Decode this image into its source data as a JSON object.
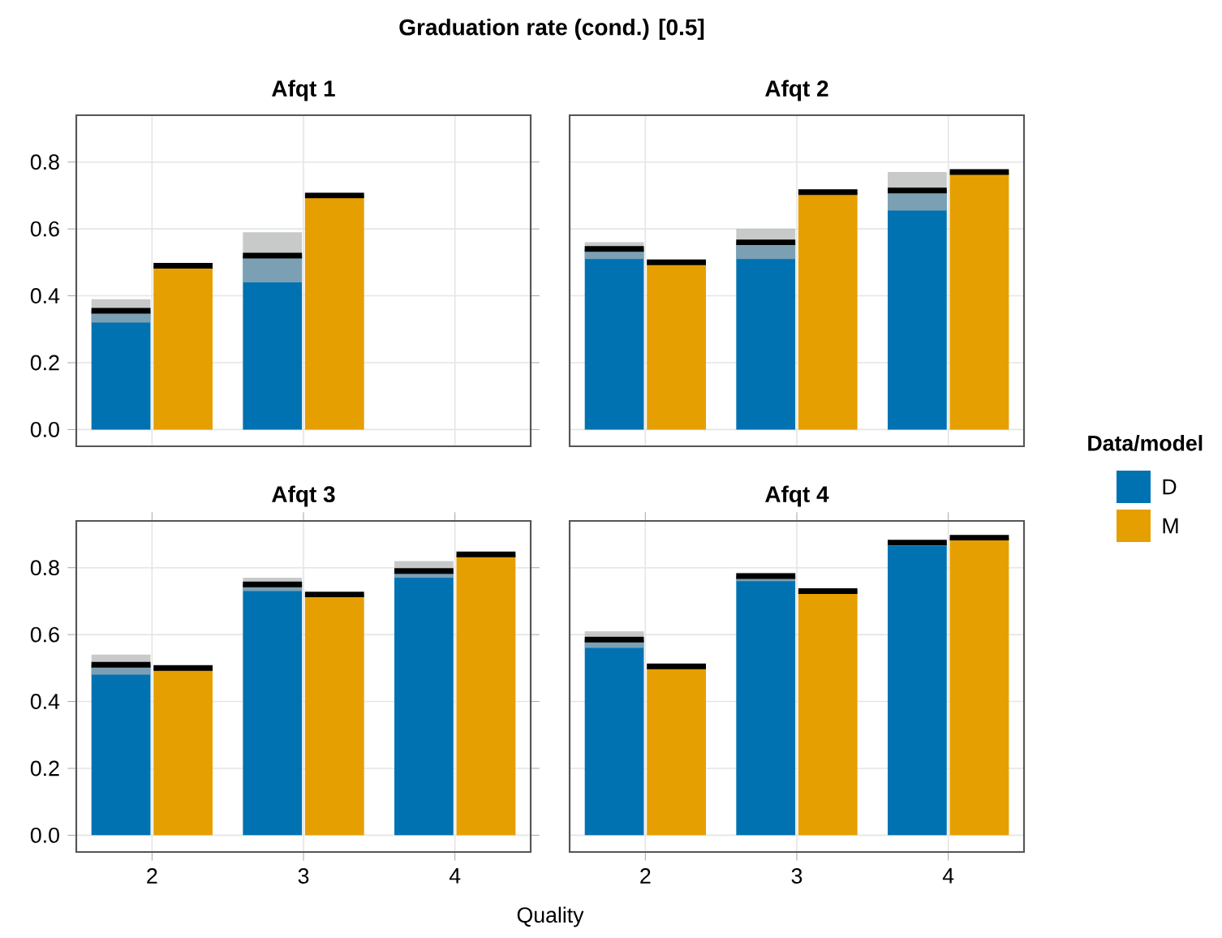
{
  "chart_data": [
    {
      "type": "bar",
      "title": "Afqt 1",
      "annotations": [
        "Graduation rate (cond.) [0.5]"
      ],
      "categories": [
        "2",
        "3",
        "4"
      ],
      "ylim": [
        -0.05,
        0.94
      ],
      "yticks": [
        {
          "value": 0,
          "label": "0.0"
        },
        0.2,
        0.4,
        0.6,
        0.8
      ],
      "grid": true,
      "tick_labels": "y",
      "series": [
        {
          "color": "#0072b2",
          "values": [
            0.355,
            0.52,
            null
          ],
          "errors": [
            [
              0.32,
              0.39
            ],
            [
              0.44,
              0.59
            ],
            null
          ]
        },
        {
          "color": "#e69f00",
          "values": [
            0.49,
            0.7,
            null
          ]
        }
      ]
    },
    {
      "type": "bar",
      "title": "Afqt 2",
      "categories": [
        "2",
        "3",
        "4"
      ],
      "ylim": [
        -0.05,
        0.94
      ],
      "yticks": [
        {
          "value": 0,
          "label": null
        },
        {
          "value": 0.2,
          "label": null
        },
        {
          "value": 0.4,
          "label": null
        },
        {
          "value": 0.6,
          "label": null
        },
        {
          "value": 0.8,
          "label": null
        }
      ],
      "grid": true,
      "tick_labels": false,
      "legend": "right",
      "legend_title": "Data/model",
      "series": [
        {
          "name": "D",
          "color": "#0072b2",
          "values": [
            0.54,
            0.56,
            0.715
          ],
          "errors": [
            [
              0.51,
              0.56
            ],
            [
              0.51,
              0.6
            ],
            [
              0.655,
              0.77
            ]
          ]
        },
        {
          "name": "M",
          "color": "#e69f00",
          "values": [
            0.5,
            0.71,
            0.77
          ]
        }
      ]
    },
    {
      "type": "bar",
      "title": "Afqt 3",
      "xlabel": "Quality",
      "categories": [
        "2",
        "3",
        "4"
      ],
      "ylim": [
        -0.05,
        0.94
      ],
      "yticks": [
        {
          "value": 0,
          "label": "0.0"
        },
        0.2,
        0.4,
        0.6,
        0.8
      ],
      "grid": true,
      "series": [
        {
          "color": "#0072b2",
          "values": [
            0.51,
            0.75,
            0.79
          ],
          "errors": [
            [
              0.48,
              0.54
            ],
            [
              0.73,
              0.77
            ],
            [
              0.77,
              0.82
            ]
          ]
        },
        {
          "color": "#e69f00",
          "values": [
            0.5,
            0.72,
            0.84
          ]
        }
      ]
    },
    {
      "type": "bar",
      "title": "Afqt 4",
      "categories": [
        "2",
        "3",
        "4"
      ],
      "ylim": [
        -0.05,
        0.94
      ],
      "yticks": [
        {
          "value": 0,
          "label": null
        },
        {
          "value": 0.2,
          "label": null
        },
        {
          "value": 0.4,
          "label": null
        },
        {
          "value": 0.6,
          "label": null
        },
        {
          "value": 0.8,
          "label": null
        }
      ],
      "grid": true,
      "tick_labels": "x",
      "series": [
        {
          "color": "#0072b2",
          "values": [
            0.585,
            0.775,
            0.875
          ],
          "errors": [
            [
              0.56,
              0.61
            ],
            [
              0.76,
              0.785
            ],
            [
              0.865,
              0.88
            ]
          ]
        },
        {
          "color": "#e69f00",
          "values": [
            0.505,
            0.73,
            0.89
          ]
        }
      ]
    }
  ]
}
